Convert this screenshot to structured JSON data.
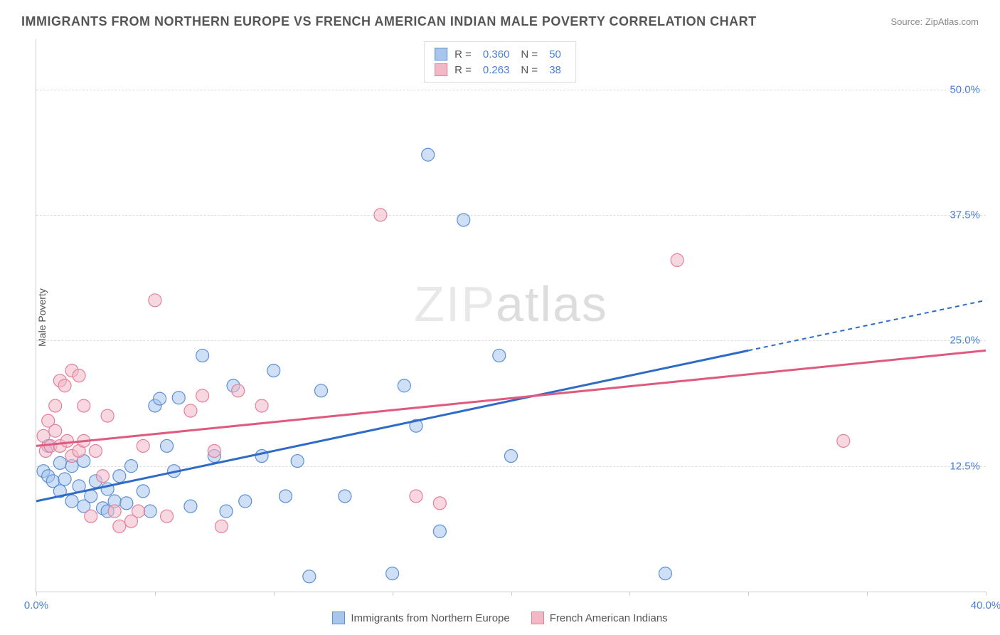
{
  "title": "IMMIGRANTS FROM NORTHERN EUROPE VS FRENCH AMERICAN INDIAN MALE POVERTY CORRELATION CHART",
  "source": "Source: ZipAtlas.com",
  "y_axis_label": "Male Poverty",
  "watermark": "ZIPatlas",
  "chart": {
    "type": "scatter",
    "xlim": [
      0,
      40
    ],
    "ylim": [
      0,
      55
    ],
    "x_tick_positions": [
      0,
      5,
      10,
      15,
      20,
      25,
      30,
      35,
      40
    ],
    "x_tick_labels": {
      "0": "0.0%",
      "40": "40.0%"
    },
    "y_gridlines": [
      12.5,
      25.0,
      37.5,
      50.0
    ],
    "y_tick_labels": [
      "12.5%",
      "25.0%",
      "37.5%",
      "50.0%"
    ],
    "background_color": "#ffffff",
    "grid_color": "#dddddd",
    "marker_radius": 9,
    "marker_opacity": 0.55
  },
  "series": [
    {
      "name": "Immigrants from Northern Europe",
      "color_fill": "#a8c5ec",
      "color_stroke": "#5b8fd6",
      "trend_color": "#2e6bc7",
      "r": "0.360",
      "n": "50",
      "trendline": {
        "x1": 0,
        "y1": 9.0,
        "x2_solid": 30,
        "y2_solid": 24.0,
        "x2_dash": 40,
        "y2_dash": 29.0
      },
      "points": [
        [
          0.3,
          12.0
        ],
        [
          0.5,
          14.5
        ],
        [
          0.5,
          11.5
        ],
        [
          0.7,
          11.0
        ],
        [
          1.0,
          10.0
        ],
        [
          1.0,
          12.8
        ],
        [
          1.2,
          11.2
        ],
        [
          1.5,
          12.5
        ],
        [
          1.5,
          9.0
        ],
        [
          1.8,
          10.5
        ],
        [
          2.0,
          13.0
        ],
        [
          2.0,
          8.5
        ],
        [
          2.3,
          9.5
        ],
        [
          2.5,
          11.0
        ],
        [
          2.8,
          8.3
        ],
        [
          3.0,
          10.2
        ],
        [
          3.0,
          8.0
        ],
        [
          3.3,
          9.0
        ],
        [
          3.5,
          11.5
        ],
        [
          3.8,
          8.8
        ],
        [
          4.0,
          12.5
        ],
        [
          4.5,
          10.0
        ],
        [
          4.8,
          8.0
        ],
        [
          5.0,
          18.5
        ],
        [
          5.2,
          19.2
        ],
        [
          5.5,
          14.5
        ],
        [
          5.8,
          12.0
        ],
        [
          6.0,
          19.3
        ],
        [
          6.5,
          8.5
        ],
        [
          7.0,
          23.5
        ],
        [
          7.5,
          13.5
        ],
        [
          8.0,
          8.0
        ],
        [
          8.3,
          20.5
        ],
        [
          8.8,
          9.0
        ],
        [
          9.5,
          13.5
        ],
        [
          10.0,
          22.0
        ],
        [
          10.5,
          9.5
        ],
        [
          11.0,
          13.0
        ],
        [
          11.5,
          1.5
        ],
        [
          12.0,
          20.0
        ],
        [
          13.0,
          9.5
        ],
        [
          15.0,
          1.8
        ],
        [
          15.5,
          20.5
        ],
        [
          16.0,
          16.5
        ],
        [
          16.5,
          43.5
        ],
        [
          17.0,
          6.0
        ],
        [
          18.0,
          37.0
        ],
        [
          19.5,
          23.5
        ],
        [
          20.0,
          13.5
        ],
        [
          26.5,
          1.8
        ]
      ]
    },
    {
      "name": "French American Indians",
      "color_fill": "#f2b8c6",
      "color_stroke": "#e57f9b",
      "trend_color": "#e05a7f",
      "r": "0.263",
      "n": "38",
      "trendline": {
        "x1": 0,
        "y1": 14.5,
        "x2_solid": 40,
        "y2_solid": 24.0,
        "x2_dash": 40,
        "y2_dash": 24.0
      },
      "points": [
        [
          0.3,
          15.5
        ],
        [
          0.4,
          14.0
        ],
        [
          0.5,
          17.0
        ],
        [
          0.6,
          14.5
        ],
        [
          0.8,
          16.0
        ],
        [
          0.8,
          18.5
        ],
        [
          1.0,
          14.5
        ],
        [
          1.0,
          21.0
        ],
        [
          1.2,
          20.5
        ],
        [
          1.3,
          15.0
        ],
        [
          1.5,
          22.0
        ],
        [
          1.5,
          13.5
        ],
        [
          1.8,
          14.0
        ],
        [
          1.8,
          21.5
        ],
        [
          2.0,
          15.0
        ],
        [
          2.0,
          18.5
        ],
        [
          2.3,
          7.5
        ],
        [
          2.5,
          14.0
        ],
        [
          2.8,
          11.5
        ],
        [
          3.0,
          17.5
        ],
        [
          3.3,
          8.0
        ],
        [
          3.5,
          6.5
        ],
        [
          4.0,
          7.0
        ],
        [
          4.3,
          8.0
        ],
        [
          4.5,
          14.5
        ],
        [
          5.0,
          29.0
        ],
        [
          5.5,
          7.5
        ],
        [
          6.5,
          18.0
        ],
        [
          7.0,
          19.5
        ],
        [
          7.5,
          14.0
        ],
        [
          7.8,
          6.5
        ],
        [
          8.5,
          20.0
        ],
        [
          9.5,
          18.5
        ],
        [
          14.5,
          37.5
        ],
        [
          16.0,
          9.5
        ],
        [
          17.0,
          8.8
        ],
        [
          27.0,
          33.0
        ],
        [
          34.0,
          15.0
        ]
      ]
    }
  ],
  "bottom_legend": [
    {
      "label": "Immigrants from Northern Europe",
      "fill": "#a8c5ec",
      "stroke": "#5b8fd6"
    },
    {
      "label": "French American Indians",
      "fill": "#f2b8c6",
      "stroke": "#e57f9b"
    }
  ]
}
